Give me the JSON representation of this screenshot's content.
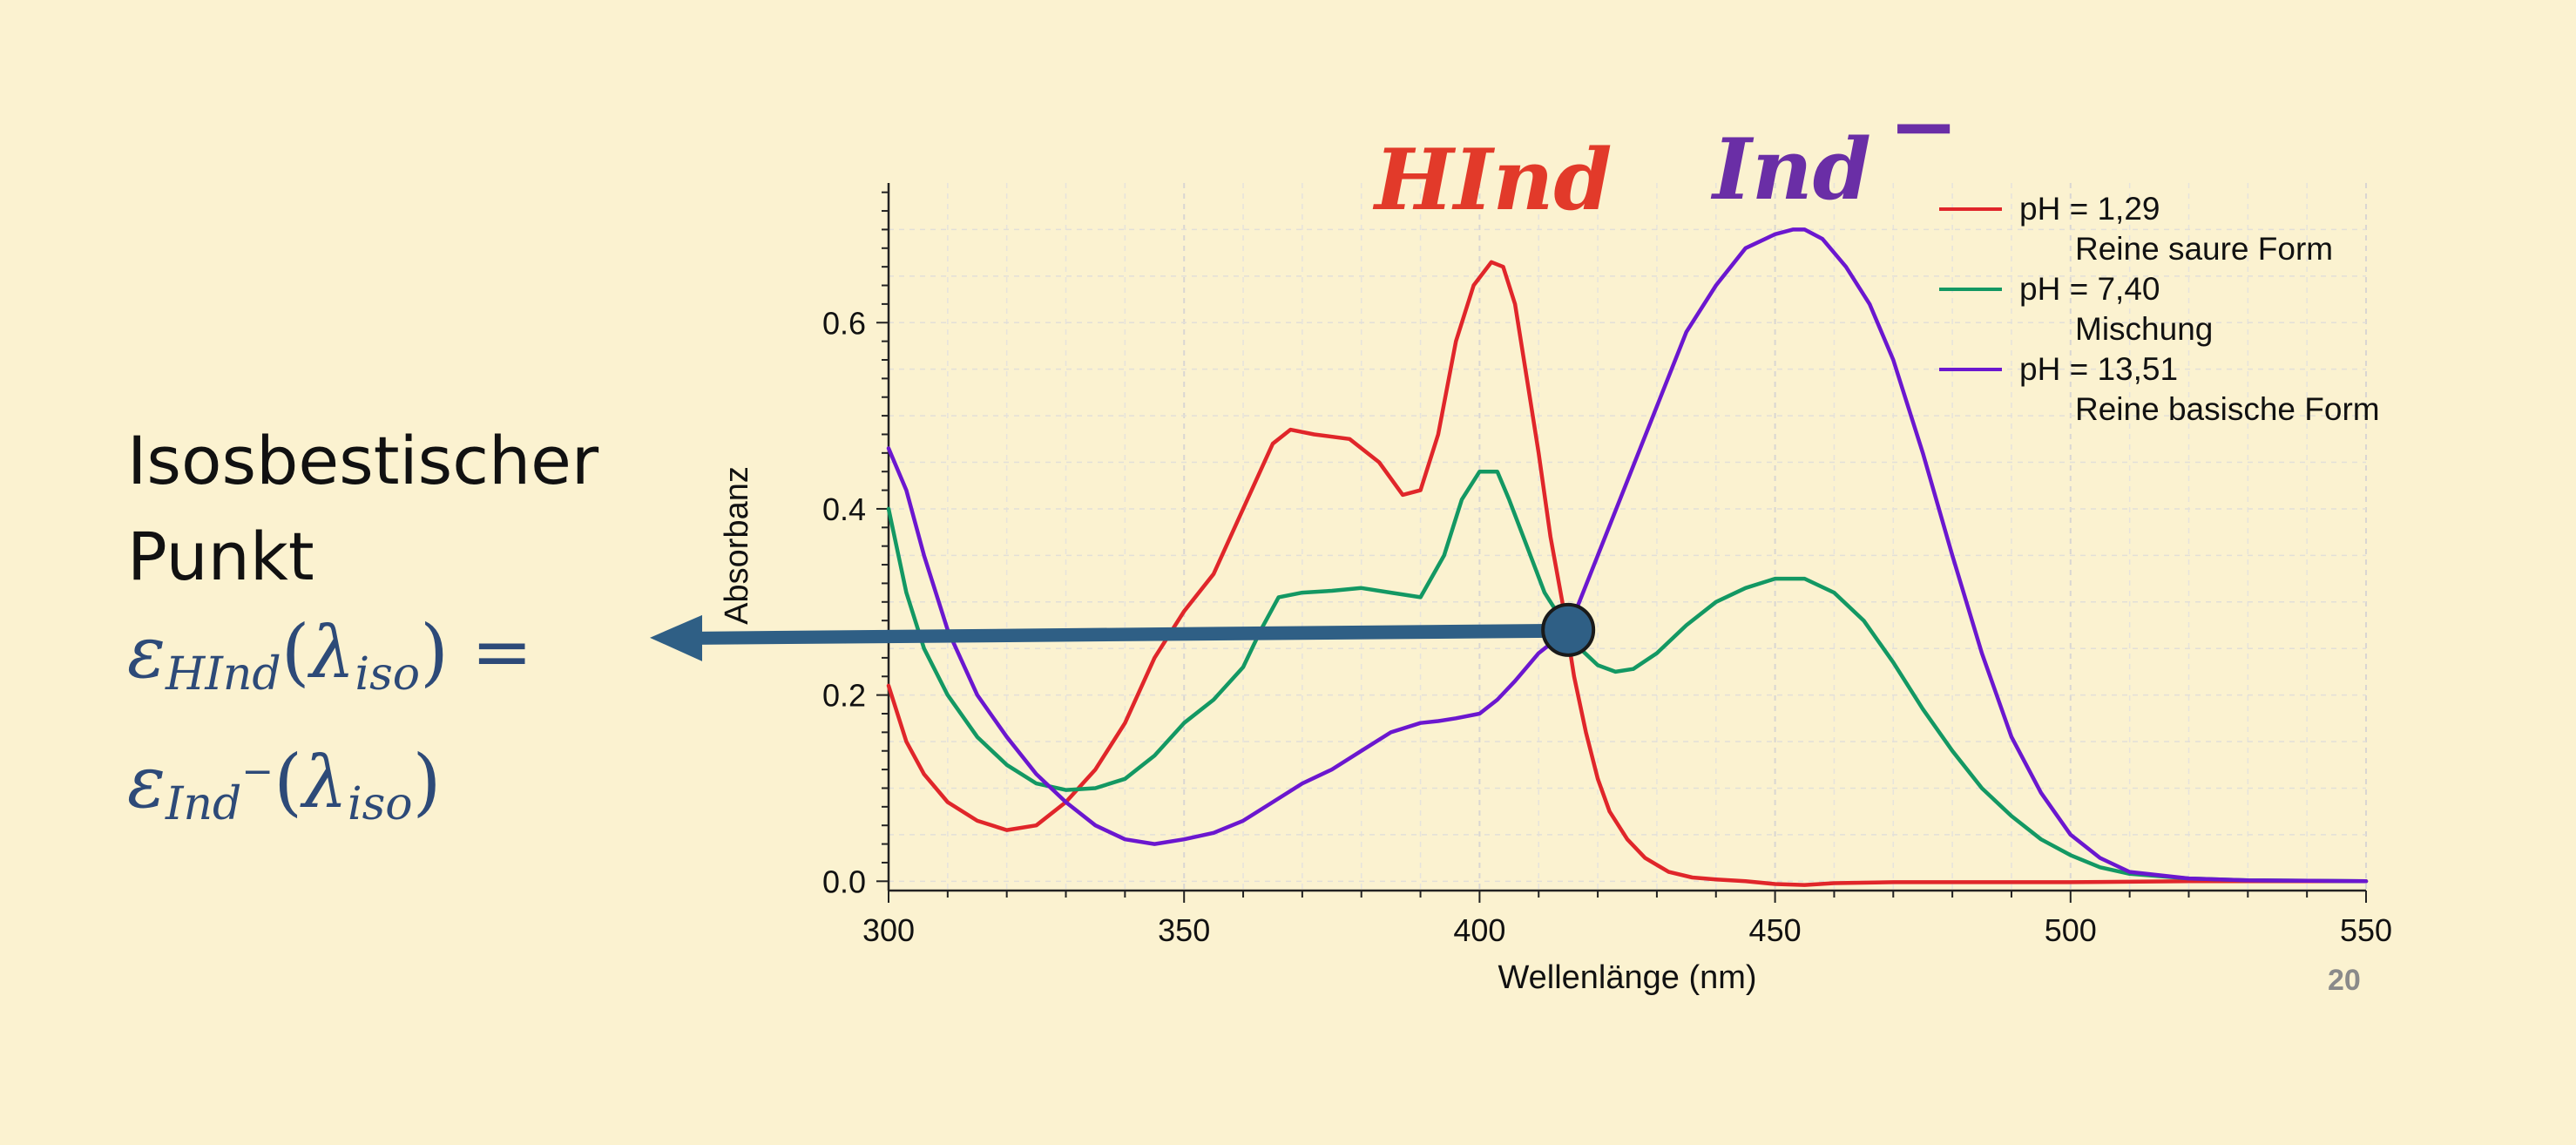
{
  "colors": {
    "background": "#fbf2d0",
    "acid": "#e0262a",
    "mixture": "#139863",
    "base": "#6b17cf",
    "arrow": "#2f5f85",
    "hind_label": "#e23a2a",
    "ind_label": "#6a2ea6",
    "formula": "#2d4a78"
  },
  "left_panel": {
    "title_line1": "Isosbestischer",
    "title_line2": "Punkt",
    "formula": {
      "eps": "ε",
      "sub1": "HInd",
      "sub2": "Ind",
      "sup2": "−",
      "paren_open": "(",
      "lambda": "λ",
      "lambda_sub": "iso",
      "paren_close": ")",
      "equals": "="
    }
  },
  "page_number": "20",
  "chart_data": {
    "type": "line",
    "xlabel": "Wellenlänge (nm)",
    "ylabel": "Absorbanz",
    "xlim": [
      300,
      550
    ],
    "ylim": [
      -0.01,
      0.75
    ],
    "xticks": [
      300,
      350,
      400,
      450,
      500,
      550
    ],
    "yticks": [
      0.0,
      0.2,
      0.4,
      0.6
    ],
    "ytick_labels": [
      "0.0",
      "0.2",
      "0.4",
      "0.6"
    ],
    "grid": true,
    "legend_position": "top-right",
    "species_labels": [
      {
        "text": "HInd",
        "x": 400,
        "color": "#e23a2a"
      },
      {
        "text": "Ind",
        "sup": "−",
        "x": 455,
        "color": "#6a2ea6"
      }
    ],
    "isosbestic_point": {
      "x": 415,
      "y": 0.27
    },
    "series": [
      {
        "name": "pH = 1,29",
        "description": "Reine saure Form",
        "color": "#e0262a",
        "x": [
          300,
          303,
          306,
          310,
          315,
          320,
          325,
          330,
          335,
          340,
          345,
          350,
          355,
          360,
          365,
          368,
          372,
          378,
          383,
          387,
          390,
          393,
          396,
          399,
          402,
          404,
          406,
          408,
          410,
          412,
          414,
          416,
          418,
          420,
          422,
          425,
          428,
          432,
          436,
          440,
          445,
          450,
          455,
          460,
          470,
          480,
          500,
          520,
          550
        ],
        "y": [
          0.21,
          0.15,
          0.115,
          0.085,
          0.065,
          0.055,
          0.06,
          0.085,
          0.12,
          0.17,
          0.24,
          0.29,
          0.33,
          0.4,
          0.47,
          0.485,
          0.48,
          0.475,
          0.45,
          0.415,
          0.42,
          0.48,
          0.58,
          0.64,
          0.665,
          0.66,
          0.62,
          0.54,
          0.46,
          0.37,
          0.3,
          0.22,
          0.16,
          0.11,
          0.075,
          0.045,
          0.025,
          0.01,
          0.004,
          0.002,
          0.0,
          -0.003,
          -0.004,
          -0.002,
          -0.001,
          -0.001,
          -0.001,
          0.0,
          0.0
        ]
      },
      {
        "name": "pH = 7,40",
        "description": "Mischung",
        "color": "#139863",
        "x": [
          300,
          303,
          306,
          310,
          315,
          320,
          325,
          330,
          335,
          340,
          345,
          350,
          355,
          360,
          363,
          366,
          370,
          375,
          380,
          385,
          390,
          394,
          397,
          400,
          403,
          405,
          408,
          411,
          414,
          417,
          420,
          423,
          426,
          430,
          435,
          440,
          445,
          450,
          455,
          460,
          465,
          470,
          475,
          480,
          485,
          490,
          495,
          500,
          505,
          510,
          520,
          530,
          550
        ],
        "y": [
          0.4,
          0.31,
          0.25,
          0.2,
          0.155,
          0.125,
          0.105,
          0.098,
          0.1,
          0.11,
          0.135,
          0.17,
          0.195,
          0.23,
          0.27,
          0.305,
          0.31,
          0.312,
          0.315,
          0.31,
          0.305,
          0.35,
          0.41,
          0.44,
          0.44,
          0.41,
          0.36,
          0.31,
          0.28,
          0.25,
          0.232,
          0.225,
          0.228,
          0.245,
          0.275,
          0.3,
          0.315,
          0.325,
          0.325,
          0.31,
          0.28,
          0.235,
          0.185,
          0.14,
          0.1,
          0.07,
          0.045,
          0.028,
          0.015,
          0.008,
          0.003,
          0.001,
          0.0
        ]
      },
      {
        "name": "pH = 13,51",
        "description": "Reine basische Form",
        "color": "#6b17cf",
        "x": [
          300,
          303,
          306,
          310,
          315,
          320,
          325,
          330,
          335,
          340,
          345,
          350,
          355,
          360,
          365,
          370,
          375,
          380,
          385,
          390,
          393,
          396,
          400,
          403,
          406,
          410,
          415,
          420,
          425,
          430,
          435,
          440,
          445,
          450,
          453,
          455,
          458,
          462,
          466,
          470,
          475,
          480,
          485,
          490,
          495,
          500,
          505,
          510,
          520,
          530,
          550
        ],
        "y": [
          0.465,
          0.42,
          0.35,
          0.27,
          0.2,
          0.155,
          0.115,
          0.085,
          0.06,
          0.045,
          0.04,
          0.045,
          0.052,
          0.065,
          0.085,
          0.105,
          0.12,
          0.14,
          0.16,
          0.17,
          0.172,
          0.175,
          0.18,
          0.195,
          0.215,
          0.245,
          0.27,
          0.35,
          0.43,
          0.51,
          0.59,
          0.64,
          0.68,
          0.695,
          0.7,
          0.7,
          0.69,
          0.66,
          0.62,
          0.56,
          0.46,
          0.35,
          0.245,
          0.155,
          0.095,
          0.05,
          0.025,
          0.01,
          0.003,
          0.001,
          0.0
        ]
      }
    ]
  }
}
